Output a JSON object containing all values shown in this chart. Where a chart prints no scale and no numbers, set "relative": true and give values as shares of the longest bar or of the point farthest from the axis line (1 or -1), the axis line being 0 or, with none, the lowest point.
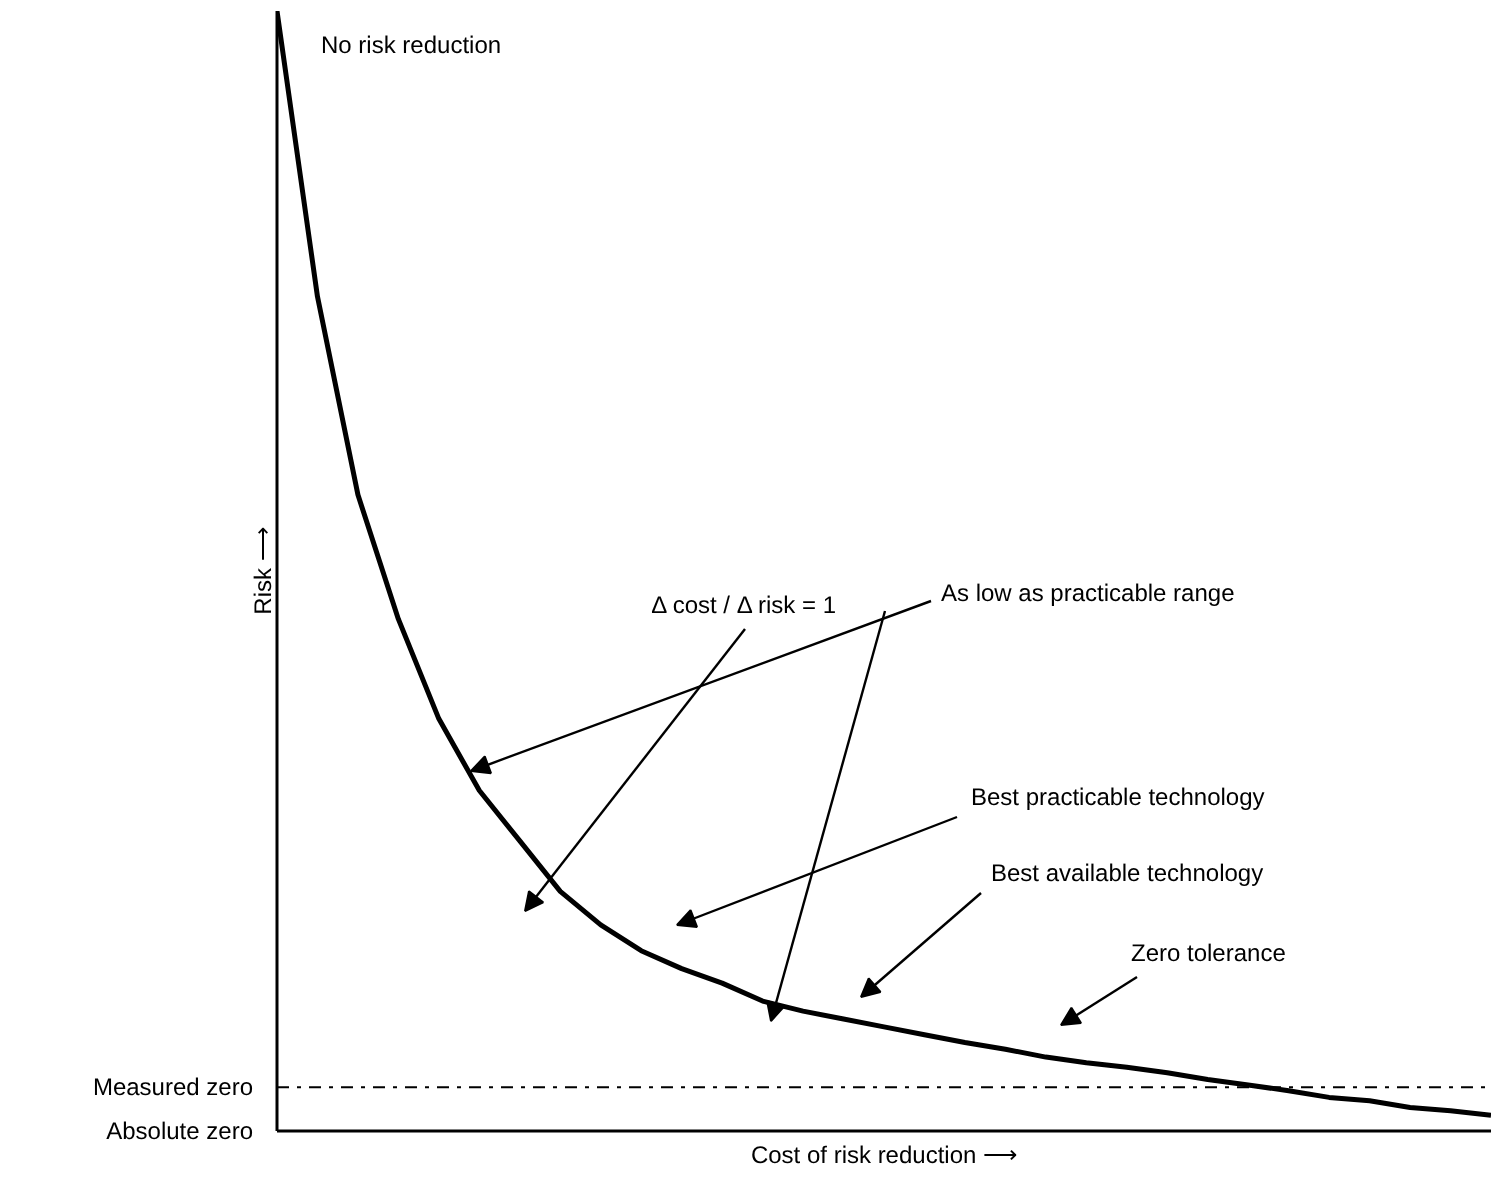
{
  "chart_data": {
    "type": "line",
    "relative": true,
    "xlabel": "Cost of risk reduction ⟶",
    "ylabel": "Risk ⟶",
    "categories": [
      null,
      null,
      null,
      null,
      null,
      null,
      null,
      null,
      null,
      null,
      null,
      null,
      null,
      null,
      null,
      null,
      null,
      null,
      null,
      null,
      null,
      null,
      null,
      null,
      null,
      null,
      null,
      null,
      null,
      null,
      null
    ],
    "series": [
      {
        "color": "#000000",
        "values": [
          1,
          0.745,
          0.568,
          0.457,
          0.368,
          0.304,
          0.259,
          0.214,
          0.184,
          0.161,
          0.145,
          0.132,
          0.116,
          0.107,
          0.1,
          0.093,
          0.086,
          0.079,
          0.073,
          0.066,
          0.061,
          0.057,
          0.052,
          0.046,
          0.041,
          0.036,
          0.03,
          0.027,
          0.021,
          0.018,
          0.014
        ]
      }
    ],
    "ref_lines": [
      {
        "axis": "y",
        "value": 0.039,
        "label": "Measured zero",
        "line_style": "dashdot",
        "color": "#000000"
      },
      {
        "axis": "y",
        "value": 0,
        "label": "Absolute zero",
        "color": "#000000"
      }
    ],
    "annotations": [
      "No risk reduction",
      "As low as practicable range",
      "Δ cost / Δ risk = 1",
      "Best practicable technology",
      "Best available technology",
      "Zero tolerance"
    ],
    "grid": false,
    "marker": "none",
    "line_style": "solid"
  }
}
